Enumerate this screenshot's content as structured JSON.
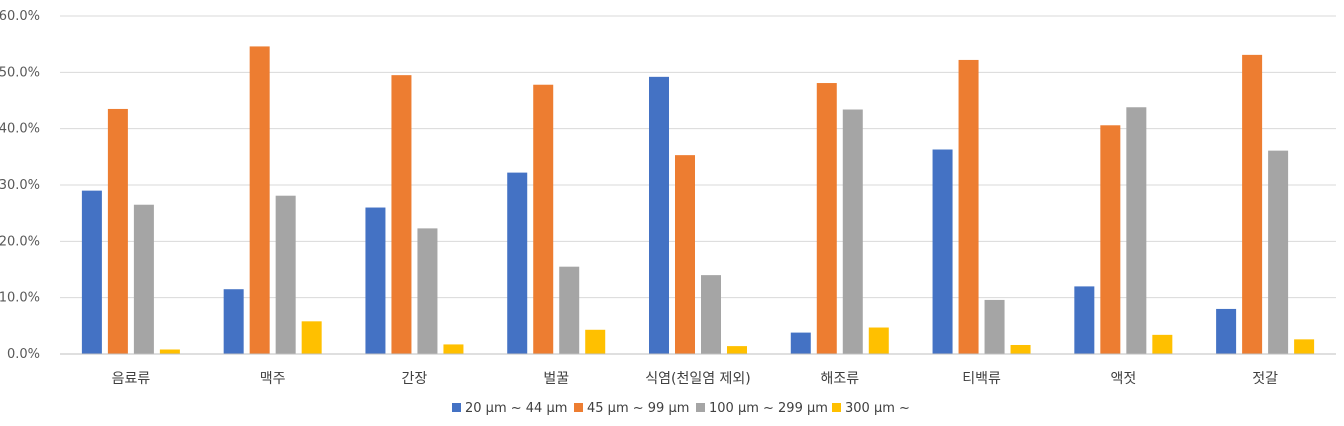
{
  "chart_data": {
    "type": "bar",
    "title": "",
    "xlabel": "",
    "ylabel": "",
    "ylim": [
      0,
      60
    ],
    "y_tick_labels": [
      "0.0%",
      "10.0%",
      "20.0%",
      "30.0%",
      "40.0%",
      "50.0%",
      "60.0%"
    ],
    "grid": true,
    "legend_position": "bottom",
    "categories": [
      "음료류",
      "맥주",
      "간장",
      "벌꿀",
      "식염(천일염 제외)",
      "해조류",
      "티백류",
      "액젓",
      "젓갈"
    ],
    "series": [
      {
        "name": "20 µm ~ 44 µm",
        "color": "#4472c4",
        "values": [
          29.0,
          11.5,
          26.0,
          32.2,
          49.2,
          3.8,
          36.3,
          12.0,
          8.0
        ]
      },
      {
        "name": "45 µm ~ 99 µm",
        "color": "#ed7d31",
        "values": [
          43.5,
          54.6,
          49.5,
          47.8,
          35.3,
          48.1,
          52.2,
          40.6,
          53.1
        ]
      },
      {
        "name": "100 µm ~ 299 µm",
        "color": "#a5a5a5",
        "values": [
          26.5,
          28.1,
          22.3,
          15.5,
          14.0,
          43.4,
          9.6,
          43.8,
          36.1
        ]
      },
      {
        "name": "300 µm ~",
        "color": "#ffc000",
        "values": [
          0.8,
          5.8,
          1.7,
          4.3,
          1.4,
          4.7,
          1.6,
          3.4,
          2.6
        ]
      }
    ]
  }
}
